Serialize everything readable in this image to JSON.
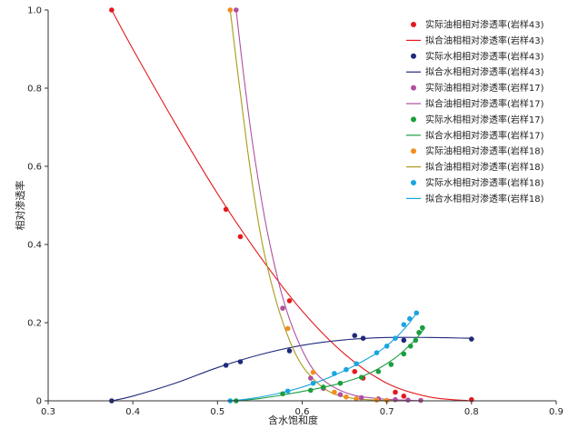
{
  "chart_data": {
    "type": "scatter",
    "title": "",
    "xlabel": "含水饱和度",
    "ylabel": "相对渗透率",
    "xlim": [
      0.3,
      0.9
    ],
    "ylim": [
      0,
      1.0
    ],
    "xticks": [
      "0.3",
      "0.4",
      "0.5",
      "0.6",
      "0.7",
      "0.8",
      "0.9"
    ],
    "yticks": [
      "0",
      "0.2",
      "0.4",
      "0.6",
      "0.8",
      "1.0"
    ],
    "grid": false,
    "legend_position": "top-right",
    "series": [
      {
        "name": "实际油相相对渗透率(岩样43)",
        "kind": "points",
        "color": "#e31a1c",
        "points": [
          [
            0.375,
            1.0
          ],
          [
            0.51,
            0.49
          ],
          [
            0.527,
            0.42
          ],
          [
            0.585,
            0.256
          ],
          [
            0.662,
            0.075
          ],
          [
            0.672,
            0.058
          ],
          [
            0.71,
            0.022
          ],
          [
            0.72,
            0.012
          ],
          [
            0.8,
            0.003
          ]
        ]
      },
      {
        "name": "拟合油相相对渗透率(岩样43)",
        "kind": "line",
        "color": "#e31a1c",
        "points": [
          [
            0.375,
            1.0
          ],
          [
            0.4,
            0.9
          ],
          [
            0.45,
            0.71
          ],
          [
            0.5,
            0.53
          ],
          [
            0.55,
            0.37
          ],
          [
            0.6,
            0.23
          ],
          [
            0.65,
            0.12
          ],
          [
            0.7,
            0.045
          ],
          [
            0.75,
            0.01
          ],
          [
            0.8,
            0.0
          ]
        ]
      },
      {
        "name": "实际水相相对渗透率(岩样43)",
        "kind": "points",
        "color": "#1f2a7a",
        "points": [
          [
            0.375,
            0.0
          ],
          [
            0.51,
            0.091
          ],
          [
            0.527,
            0.1
          ],
          [
            0.585,
            0.128
          ],
          [
            0.662,
            0.167
          ],
          [
            0.672,
            0.16
          ],
          [
            0.72,
            0.155
          ],
          [
            0.8,
            0.158
          ]
        ]
      },
      {
        "name": "拟合水相相对渗透率(岩样43)",
        "kind": "line",
        "color": "#1f2a7a",
        "points": [
          [
            0.375,
            0.0
          ],
          [
            0.4,
            0.012
          ],
          [
            0.45,
            0.045
          ],
          [
            0.5,
            0.085
          ],
          [
            0.55,
            0.118
          ],
          [
            0.6,
            0.142
          ],
          [
            0.65,
            0.156
          ],
          [
            0.7,
            0.162
          ],
          [
            0.75,
            0.162
          ],
          [
            0.8,
            0.16
          ]
        ]
      },
      {
        "name": "实际油相相对渗透率(岩样17)",
        "kind": "points",
        "color": "#b0509e",
        "points": [
          [
            0.522,
            1.0
          ],
          [
            0.577,
            0.237
          ],
          [
            0.61,
            0.058
          ],
          [
            0.625,
            0.032
          ],
          [
            0.645,
            0.016
          ],
          [
            0.67,
            0.008
          ],
          [
            0.69,
            0.005
          ],
          [
            0.71,
            0.003
          ],
          [
            0.725,
            0.002
          ],
          [
            0.74,
            0.001
          ]
        ]
      },
      {
        "name": "拟合油相相对渗透率(岩样17)",
        "kind": "line",
        "color": "#b0509e",
        "points": [
          [
            0.522,
            1.0
          ],
          [
            0.53,
            0.85
          ],
          [
            0.54,
            0.68
          ],
          [
            0.55,
            0.54
          ],
          [
            0.56,
            0.42
          ],
          [
            0.575,
            0.28
          ],
          [
            0.59,
            0.18
          ],
          [
            0.61,
            0.09
          ],
          [
            0.63,
            0.045
          ],
          [
            0.66,
            0.015
          ],
          [
            0.7,
            0.004
          ],
          [
            0.745,
            0.0
          ]
        ]
      },
      {
        "name": "实际水相相对渗透率(岩样17)",
        "kind": "points",
        "color": "#1a9e3f",
        "points": [
          [
            0.522,
            0.0
          ],
          [
            0.577,
            0.018
          ],
          [
            0.61,
            0.027
          ],
          [
            0.625,
            0.035
          ],
          [
            0.645,
            0.045
          ],
          [
            0.67,
            0.06
          ],
          [
            0.69,
            0.075
          ],
          [
            0.705,
            0.093
          ],
          [
            0.72,
            0.12
          ],
          [
            0.728,
            0.14
          ],
          [
            0.734,
            0.155
          ],
          [
            0.738,
            0.175
          ],
          [
            0.742,
            0.187
          ]
        ]
      },
      {
        "name": "拟合水相相对渗透率(岩样17)",
        "kind": "line",
        "color": "#1a9e3f",
        "points": [
          [
            0.522,
            0.0
          ],
          [
            0.55,
            0.006
          ],
          [
            0.58,
            0.016
          ],
          [
            0.61,
            0.028
          ],
          [
            0.64,
            0.042
          ],
          [
            0.67,
            0.062
          ],
          [
            0.69,
            0.082
          ],
          [
            0.71,
            0.11
          ],
          [
            0.725,
            0.138
          ],
          [
            0.735,
            0.16
          ],
          [
            0.745,
            0.187
          ]
        ]
      },
      {
        "name": "实际油相相对渗透率(岩样18)",
        "kind": "points",
        "color": "#f28e1c",
        "points": [
          [
            0.515,
            1.0
          ],
          [
            0.583,
            0.185
          ],
          [
            0.613,
            0.073
          ],
          [
            0.638,
            0.022
          ],
          [
            0.652,
            0.01
          ],
          [
            0.664,
            0.005
          ],
          [
            0.688,
            0.002
          ],
          [
            0.7,
            0.001
          ]
        ]
      },
      {
        "name": "拟合油相相对渗透率(岩样18)",
        "kind": "line",
        "color": "#a89a1a",
        "points": [
          [
            0.515,
            1.0
          ],
          [
            0.525,
            0.82
          ],
          [
            0.535,
            0.65
          ],
          [
            0.545,
            0.5
          ],
          [
            0.555,
            0.38
          ],
          [
            0.57,
            0.25
          ],
          [
            0.585,
            0.155
          ],
          [
            0.6,
            0.09
          ],
          [
            0.62,
            0.042
          ],
          [
            0.64,
            0.016
          ],
          [
            0.67,
            0.004
          ],
          [
            0.72,
            0.0
          ]
        ]
      },
      {
        "name": "实际水相相对渗透率(岩样18)",
        "kind": "points",
        "color": "#1aa5e0",
        "points": [
          [
            0.515,
            0.0
          ],
          [
            0.583,
            0.025
          ],
          [
            0.613,
            0.045
          ],
          [
            0.638,
            0.07
          ],
          [
            0.652,
            0.08
          ],
          [
            0.664,
            0.095
          ],
          [
            0.688,
            0.123
          ],
          [
            0.7,
            0.14
          ],
          [
            0.71,
            0.16
          ],
          [
            0.72,
            0.195
          ],
          [
            0.727,
            0.21
          ],
          [
            0.735,
            0.225
          ]
        ]
      },
      {
        "name": "拟合水相相对渗透率(岩样18)",
        "kind": "line",
        "color": "#1aa5e0",
        "points": [
          [
            0.515,
            0.0
          ],
          [
            0.54,
            0.006
          ],
          [
            0.57,
            0.018
          ],
          [
            0.6,
            0.035
          ],
          [
            0.63,
            0.058
          ],
          [
            0.66,
            0.088
          ],
          [
            0.69,
            0.125
          ],
          [
            0.71,
            0.16
          ],
          [
            0.725,
            0.195
          ],
          [
            0.735,
            0.225
          ]
        ]
      }
    ]
  }
}
